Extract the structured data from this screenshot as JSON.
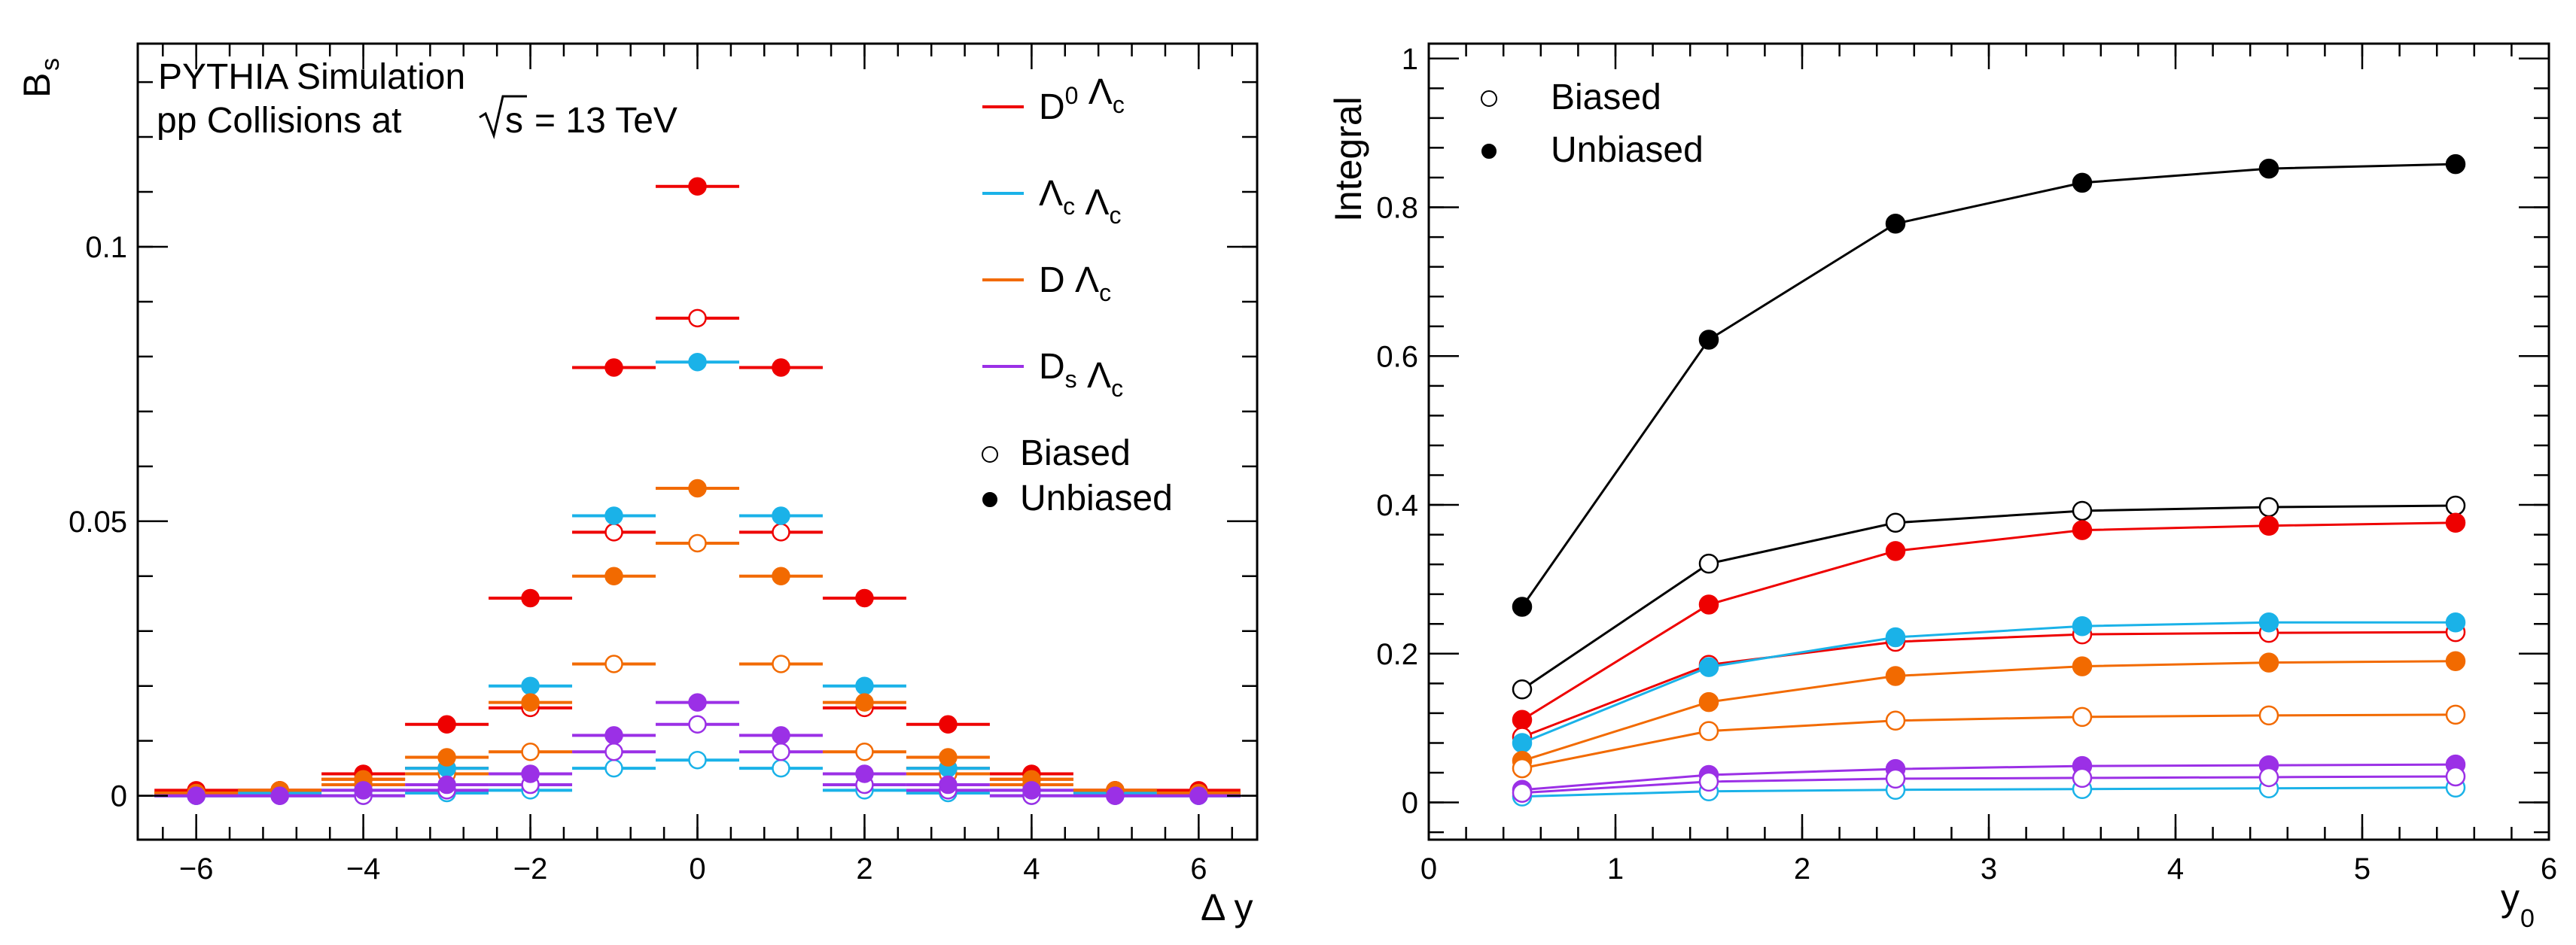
{
  "colors": {
    "D0_Lc": "#ee0000",
    "Lc_Lc": "#1ab2e8",
    "D_Lc": "#f26a00",
    "Ds_Lc": "#9b30e6",
    "Biased_Unbiased": "#000000"
  },
  "chart_data": [
    {
      "type": "scatter",
      "title": "",
      "annotation": {
        "line1": "PYTHIA Simulation",
        "line2_prefix": "pp Collisions at",
        "line2_sqrt": "s",
        "line2_suffix": "= 13 TeV"
      },
      "xlabel": "Δ y",
      "ylabel": {
        "main": "B",
        "sub": "s"
      },
      "xlim": [
        -6.7,
        6.7
      ],
      "ylim": [
        -0.008,
        0.137
      ],
      "xticks": [
        -6,
        -4,
        -2,
        0,
        2,
        4,
        6
      ],
      "xtick_labels": [
        "−6",
        "−4",
        "−2",
        "0",
        "2",
        "4",
        "6"
      ],
      "yticks": [
        0,
        0.05,
        0.1
      ],
      "ytick_labels": [
        "0",
        "0.05",
        "0.1"
      ],
      "bin_half_width": 0.5,
      "legend": {
        "position": "top-right",
        "entries": [
          {
            "key": "D0_Lc",
            "parts": [
              {
                "t": "D",
                "sup": "0"
              },
              {
                "t": " Λ",
                "sub": "c"
              }
            ]
          },
          {
            "key": "Lc_Lc",
            "parts": [
              {
                "t": "Λ",
                "sub": "c"
              },
              {
                "t": " Λ",
                "sub": "c"
              }
            ]
          },
          {
            "key": "D_Lc",
            "parts": [
              {
                "t": "D "
              },
              {
                "t": "Λ",
                "sub": "c"
              }
            ]
          },
          {
            "key": "Ds_Lc",
            "parts": [
              {
                "t": "D",
                "sub": "s"
              },
              {
                "t": " Λ",
                "sub": "c"
              }
            ]
          }
        ],
        "style_entries": [
          {
            "label": "Biased",
            "filled": false
          },
          {
            "label": "Unbiased",
            "filled": true
          }
        ]
      },
      "series": [
        {
          "name": "D0 Lambda_c Unbiased",
          "key": "D0_Lc",
          "filled": true,
          "x": [
            -6,
            -5,
            -4,
            -3,
            -2,
            -1,
            0,
            1,
            2,
            3,
            4,
            5,
            6
          ],
          "y": [
            0.001,
            0.001,
            0.004,
            0.013,
            0.036,
            0.078,
            0.111,
            0.078,
            0.036,
            0.013,
            0.004,
            0.001,
            0.001
          ]
        },
        {
          "name": "D0 Lambda_c Biased",
          "key": "D0_Lc",
          "filled": false,
          "x": [
            -6,
            -5,
            -4,
            -3,
            -2,
            -1,
            0,
            1,
            2,
            3,
            4,
            5,
            6
          ],
          "y": [
            0.0005,
            0.001,
            0.003,
            0.005,
            0.016,
            0.048,
            0.087,
            0.048,
            0.016,
            0.005,
            0.003,
            0.001,
            0.0005
          ]
        },
        {
          "name": "Lambda_c Lambda_c Unbiased",
          "key": "Lc_Lc",
          "filled": true,
          "x": [
            -6,
            -5,
            -4,
            -3,
            -2,
            -1,
            0,
            1,
            2,
            3,
            4,
            5,
            6
          ],
          "y": [
            0,
            0.0005,
            0.001,
            0.005,
            0.02,
            0.051,
            0.079,
            0.051,
            0.02,
            0.005,
            0.001,
            0.0005,
            0
          ]
        },
        {
          "name": "Lambda_c Lambda_c Biased",
          "key": "Lc_Lc",
          "filled": false,
          "x": [
            -6,
            -5,
            -4,
            -3,
            -2,
            -1,
            0,
            1,
            2,
            3,
            4,
            5,
            6
          ],
          "y": [
            0,
            0,
            0,
            0.0005,
            0.001,
            0.005,
            0.0065,
            0.005,
            0.001,
            0.0005,
            0,
            0,
            0
          ]
        },
        {
          "name": "D Lambda_c Unbiased",
          "key": "D_Lc",
          "filled": true,
          "x": [
            -6,
            -5,
            -4,
            -3,
            -2,
            -1,
            0,
            1,
            2,
            3,
            4,
            5,
            6
          ],
          "y": [
            0.0005,
            0.001,
            0.003,
            0.007,
            0.017,
            0.04,
            0.056,
            0.04,
            0.017,
            0.007,
            0.003,
            0.001,
            0.0005
          ]
        },
        {
          "name": "D Lambda_c Biased",
          "key": "D_Lc",
          "filled": false,
          "x": [
            -6,
            -5,
            -4,
            -3,
            -2,
            -1,
            0,
            1,
            2,
            3,
            4,
            5,
            6
          ],
          "y": [
            0.0005,
            0.001,
            0.002,
            0.004,
            0.008,
            0.024,
            0.046,
            0.024,
            0.008,
            0.004,
            0.002,
            0.001,
            0.0005
          ]
        },
        {
          "name": "Ds Lambda_c Unbiased",
          "key": "Ds_Lc",
          "filled": true,
          "x": [
            -6,
            -5,
            -4,
            -3,
            -2,
            -1,
            0,
            1,
            2,
            3,
            4,
            5,
            6
          ],
          "y": [
            0,
            0,
            0.001,
            0.002,
            0.004,
            0.011,
            0.017,
            0.011,
            0.004,
            0.002,
            0.001,
            0,
            0
          ]
        },
        {
          "name": "Ds Lambda_c Biased",
          "key": "Ds_Lc",
          "filled": false,
          "x": [
            -6,
            -5,
            -4,
            -3,
            -2,
            -1,
            0,
            1,
            2,
            3,
            4,
            5,
            6
          ],
          "y": [
            0,
            0,
            0,
            0.001,
            0.002,
            0.008,
            0.013,
            0.008,
            0.002,
            0.001,
            0,
            0,
            0
          ]
        }
      ]
    },
    {
      "type": "line",
      "title": "",
      "xlabel": {
        "main": "y",
        "sub": "0"
      },
      "ylabel": "Integral",
      "xlim": [
        0,
        6
      ],
      "ylim": [
        -0.05,
        1.02
      ],
      "xticks": [
        0,
        1,
        2,
        3,
        4,
        5,
        6
      ],
      "xtick_labels": [
        "0",
        "1",
        "2",
        "3",
        "4",
        "5",
        "6"
      ],
      "yticks": [
        0,
        0.2,
        0.4,
        0.6,
        0.8,
        1
      ],
      "ytick_labels": [
        "0",
        "0.2",
        "0.4",
        "0.6",
        "0.8",
        "1"
      ],
      "legend": {
        "position": "top-left",
        "entries": [
          {
            "label": "Biased",
            "filled": false
          },
          {
            "label": "Unbiased",
            "filled": true
          }
        ]
      },
      "x": [
        0.5,
        1.5,
        2.5,
        3.5,
        4.5,
        5.5
      ],
      "series": [
        {
          "name": "All Unbiased",
          "key": "Biased_Unbiased",
          "filled": true,
          "values": [
            0.263,
            0.622,
            0.778,
            0.833,
            0.852,
            0.858
          ]
        },
        {
          "name": "All Biased",
          "key": "Biased_Unbiased",
          "filled": false,
          "values": [
            0.152,
            0.321,
            0.376,
            0.392,
            0.397,
            0.399
          ]
        },
        {
          "name": "D0 Lambda_c Unbiased",
          "key": "D0_Lc",
          "filled": true,
          "values": [
            0.111,
            0.266,
            0.338,
            0.366,
            0.372,
            0.376
          ]
        },
        {
          "name": "D0 Lambda_c Biased",
          "key": "D0_Lc",
          "filled": false,
          "values": [
            0.088,
            0.185,
            0.216,
            0.226,
            0.228,
            0.229
          ]
        },
        {
          "name": "Lambda_c Lambda_c Unbiased",
          "key": "Lc_Lc",
          "filled": true,
          "values": [
            0.08,
            0.182,
            0.222,
            0.237,
            0.242,
            0.242
          ]
        },
        {
          "name": "Lambda_c Lambda_c Biased",
          "key": "Lc_Lc",
          "filled": false,
          "values": [
            0.008,
            0.015,
            0.017,
            0.018,
            0.019,
            0.02
          ]
        },
        {
          "name": "D Lambda_c Unbiased",
          "key": "D_Lc",
          "filled": true,
          "values": [
            0.056,
            0.135,
            0.17,
            0.183,
            0.188,
            0.19
          ]
        },
        {
          "name": "D Lambda_c Biased",
          "key": "D_Lc",
          "filled": false,
          "values": [
            0.046,
            0.096,
            0.11,
            0.115,
            0.117,
            0.118
          ]
        },
        {
          "name": "Ds Lambda_c Unbiased",
          "key": "Ds_Lc",
          "filled": true,
          "values": [
            0.017,
            0.037,
            0.045,
            0.049,
            0.05,
            0.051
          ]
        },
        {
          "name": "Ds Lambda_c Biased",
          "key": "Ds_Lc",
          "filled": false,
          "values": [
            0.013,
            0.028,
            0.032,
            0.033,
            0.034,
            0.035
          ]
        }
      ]
    }
  ]
}
